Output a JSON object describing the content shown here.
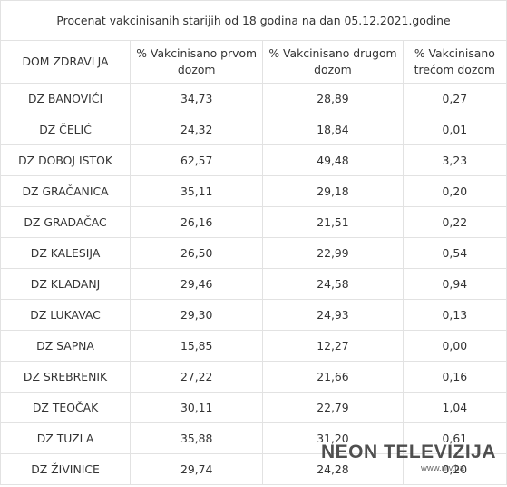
{
  "table": {
    "caption": "Procenat vakcinisanih starijih od 18 godina na dan 05.12.2021.godine",
    "headers": [
      "DOM ZDRAVLJA",
      "% Vakcinisano prvom dozom",
      "% Vakcinisano drugom dozom",
      "% Vakcinisano trećom dozom"
    ],
    "rows": [
      [
        "DZ BANOVIĆI",
        "34,73",
        "28,89",
        "0,27"
      ],
      [
        "DZ ČELIĆ",
        "24,32",
        "18,84",
        "0,01"
      ],
      [
        "DZ DOBOJ ISTOK",
        "62,57",
        "49,48",
        "3,23"
      ],
      [
        "DZ GRAČANICA",
        "35,11",
        "29,18",
        "0,20"
      ],
      [
        "DZ GRADAČAC",
        "26,16",
        "21,51",
        "0,22"
      ],
      [
        "DZ KALESIJA",
        "26,50",
        "22,99",
        "0,54"
      ],
      [
        "DZ KLADANJ",
        "29,46",
        "24,58",
        "0,94"
      ],
      [
        "DZ LUKAVAC",
        "29,30",
        "24,93",
        "0,13"
      ],
      [
        "DZ SAPNA",
        "15,85",
        "12,27",
        "0,00"
      ],
      [
        "DZ SREBRENIK",
        "27,22",
        "21,66",
        "0,16"
      ],
      [
        "DZ TEOČAK",
        "30,11",
        "22,79",
        "1,04"
      ],
      [
        "DZ TUZLA",
        "35,88",
        "31,20",
        "0,61"
      ],
      [
        "DZ ŽIVINICE",
        "29,74",
        "24,28",
        "0,20"
      ]
    ]
  },
  "watermark": {
    "brand": "NEON TELEVIZIJA",
    "url": "www.ntv.ba"
  }
}
